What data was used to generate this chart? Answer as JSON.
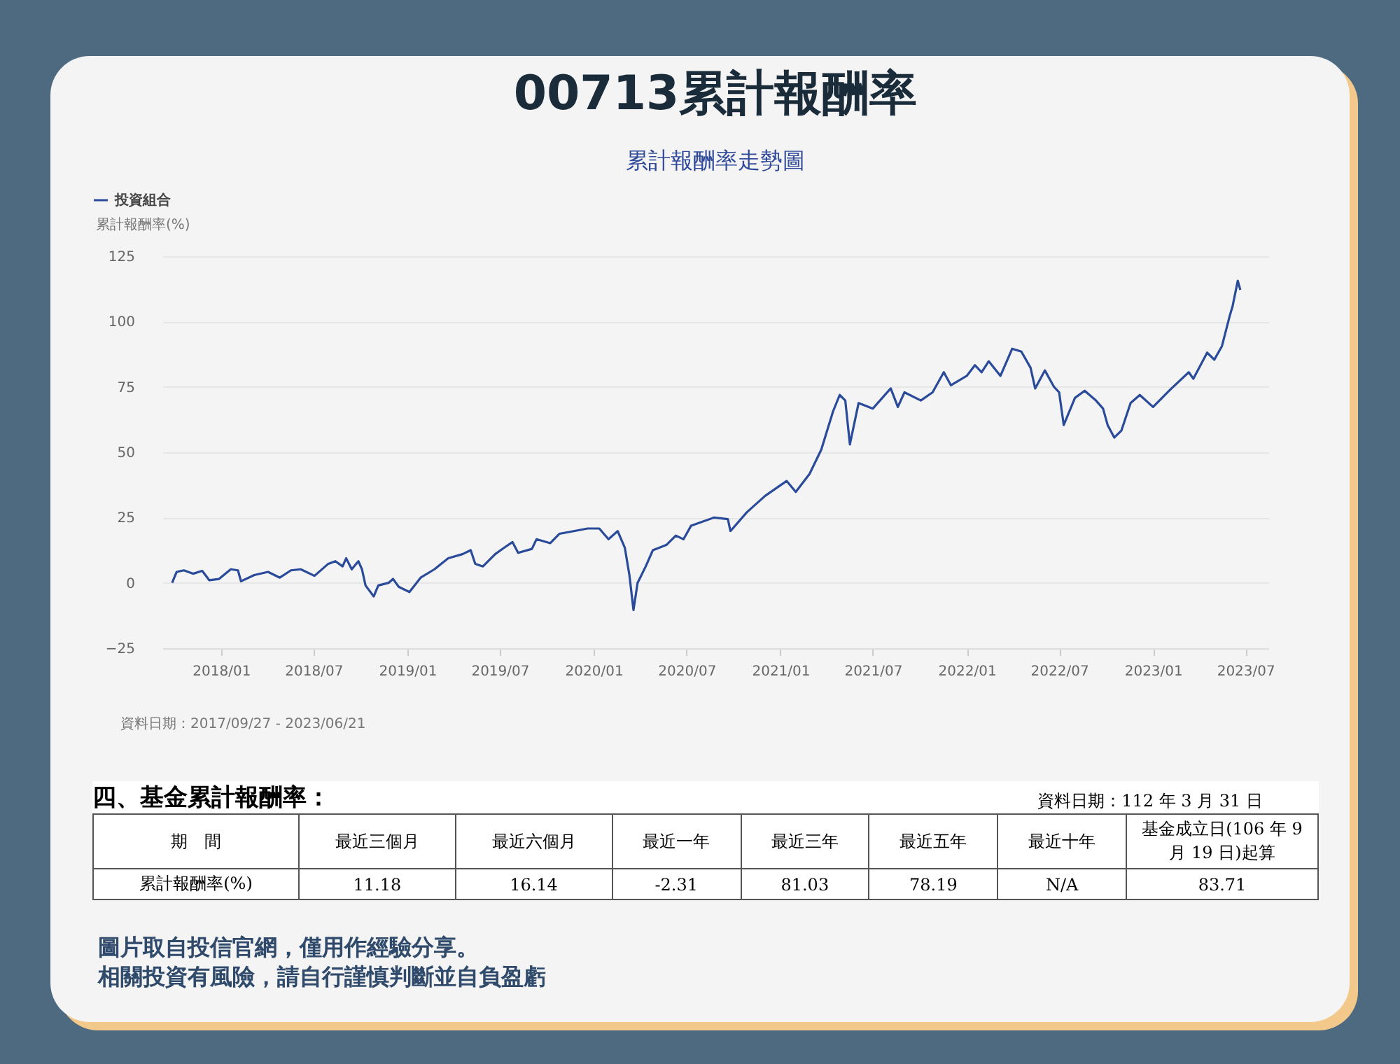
{
  "chart_data": [
    {
      "type": "line",
      "title": "00713累計報酬率",
      "subtitle": "累計報酬率走勢圖",
      "ylabel": "累計報酬率(%)",
      "legend": "top left",
      "grid": "y",
      "marker": "none",
      "line_style": "solid",
      "xlim": [
        "2017-09-08",
        "2023-08-15"
      ],
      "xticks": [
        {
          "value": "2018-01",
          "label": "2018/01"
        },
        {
          "value": "2018-07",
          "label": "2018/07"
        },
        {
          "value": "2019-01",
          "label": "2019/01"
        },
        {
          "value": "2019-07",
          "label": "2019/07"
        },
        {
          "value": "2020-01",
          "label": "2020/01"
        },
        {
          "value": "2020-07",
          "label": "2020/07"
        },
        {
          "value": "2021-01",
          "label": "2021/01"
        },
        {
          "value": "2021-07",
          "label": "2021/07"
        },
        {
          "value": "2022-01",
          "label": "2022/01"
        },
        {
          "value": "2022-07",
          "label": "2022/07"
        },
        {
          "value": "2023-01",
          "label": "2023/01"
        },
        {
          "value": "2023-07",
          "label": "2023/07"
        }
      ],
      "ylim": [
        -25,
        125
      ],
      "yticks": [
        -25,
        0,
        25,
        50,
        75,
        100,
        125
      ],
      "x": [
        "2017-09-27",
        "2017-10-06",
        "2017-10-20",
        "2017-11-07",
        "2017-11-25",
        "2017-12-09",
        "2017-12-28",
        "2018-01-20",
        "2018-02-03",
        "2018-02-09",
        "2018-03-07",
        "2018-04-03",
        "2018-04-26",
        "2018-05-18",
        "2018-06-06",
        "2018-07-03",
        "2018-07-30",
        "2018-08-13",
        "2018-08-27",
        "2018-09-03",
        "2018-09-14",
        "2018-09-27",
        "2018-10-04",
        "2018-10-11",
        "2018-10-27",
        "2018-11-05",
        "2018-11-25",
        "2018-12-04",
        "2018-12-15",
        "2019-01-05",
        "2019-01-27",
        "2019-02-23",
        "2019-03-22",
        "2019-04-19",
        "2019-05-05",
        "2019-05-14",
        "2019-05-29",
        "2019-06-22",
        "2019-07-10",
        "2019-07-26",
        "2019-08-06",
        "2019-09-02",
        "2019-09-11",
        "2019-10-08",
        "2019-10-26",
        "2019-11-23",
        "2019-12-20",
        "2020-01-12",
        "2020-01-30",
        "2020-02-17",
        "2020-03-02",
        "2020-03-11",
        "2020-03-19",
        "2020-03-27",
        "2020-04-12",
        "2020-04-26",
        "2020-05-23",
        "2020-06-10",
        "2020-06-25",
        "2020-07-10",
        "2020-08-24",
        "2020-09-20",
        "2020-09-25",
        "2020-10-27",
        "2020-12-02",
        "2021-01-13",
        "2021-01-31",
        "2021-02-27",
        "2021-03-22",
        "2021-04-14",
        "2021-04-27",
        "2021-05-08",
        "2021-05-17",
        "2021-06-03",
        "2021-07-01",
        "2021-08-05",
        "2021-08-19",
        "2021-09-01",
        "2021-10-03",
        "2021-10-26",
        "2021-11-17",
        "2021-12-01",
        "2022-01-01",
        "2022-01-17",
        "2022-01-30",
        "2022-02-13",
        "2022-03-08",
        "2022-03-31",
        "2022-04-18",
        "2022-05-06",
        "2022-05-15",
        "2022-06-03",
        "2022-06-21",
        "2022-07-01",
        "2022-07-10",
        "2022-08-01",
        "2022-08-20",
        "2022-09-11",
        "2022-09-25",
        "2022-10-04",
        "2022-10-17",
        "2022-10-31",
        "2022-11-18",
        "2022-12-06",
        "2023-01-01",
        "2023-02-04",
        "2023-03-12",
        "2023-03-21",
        "2023-04-17",
        "2023-05-01",
        "2023-05-16",
        "2023-05-31",
        "2023-06-06",
        "2023-06-16",
        "2023-06-21"
      ],
      "series": [
        {
          "name": "投資組合",
          "color": "#2a4a9a",
          "values": [
            0,
            4.2,
            4.8,
            3.5,
            4.6,
            1,
            1.5,
            5.2,
            4.8,
            0.6,
            3,
            4.2,
            2,
            4.8,
            5.2,
            2.7,
            7.3,
            8.3,
            6.3,
            9.4,
            5.2,
            8.3,
            5.2,
            -1,
            -5.2,
            -1,
            0,
            1.5,
            -1.5,
            -3.5,
            2,
            5.2,
            9.4,
            11,
            12.5,
            7.3,
            6.3,
            11,
            13.5,
            15.6,
            11.5,
            13,
            16.7,
            15.2,
            18.8,
            19.8,
            20.8,
            20.8,
            16.7,
            19.8,
            13.5,
            3,
            -10.4,
            0,
            6.3,
            12.5,
            14.6,
            18.1,
            16.7,
            21.9,
            25,
            24.4,
            19.8,
            27,
            33.3,
            39,
            34.8,
            41.7,
            51,
            65.6,
            71.9,
            69.8,
            53,
            68.8,
            66.7,
            74.4,
            67.3,
            72.9,
            69.8,
            72.9,
            80.6,
            75.6,
            79.2,
            83.3,
            80.6,
            84.8,
            79.2,
            89.6,
            88.5,
            82.3,
            74.4,
            81.3,
            75,
            72.9,
            60.4,
            70.8,
            73.5,
            69.8,
            66.7,
            60.4,
            55.6,
            58.3,
            68.8,
            71.9,
            67.3,
            74,
            80.6,
            78.1,
            88.1,
            85.4,
            90.6,
            102,
            106,
            115.6,
            112.1
          ]
        }
      ],
      "annotations": [
        "資料日期：2017/09/27 - 2023/06/21"
      ]
    },
    {
      "type": "other",
      "title": "四、基金累計報酬率：",
      "subtitle": "資料日期：112 年 3 月 31 日",
      "xlabel": "期　間",
      "ylabel": "累計報酬率(%)",
      "categories": [
        "最近三個月",
        "最近六個月",
        "最近一年",
        "最近三年",
        "最近五年",
        "最近十年",
        "基金成立日(106 年 9 月 19 日)起算"
      ],
      "value_labels": [
        "11.18",
        "16.14",
        "-2.31",
        "81.03",
        "78.19",
        "N/A",
        "83.71"
      ],
      "annotations": [
        "圖片取自投信官網，僅用作經驗分享。",
        "相關投資有風險，請自行謹慎判斷並自負盈虧"
      ]
    }
  ]
}
